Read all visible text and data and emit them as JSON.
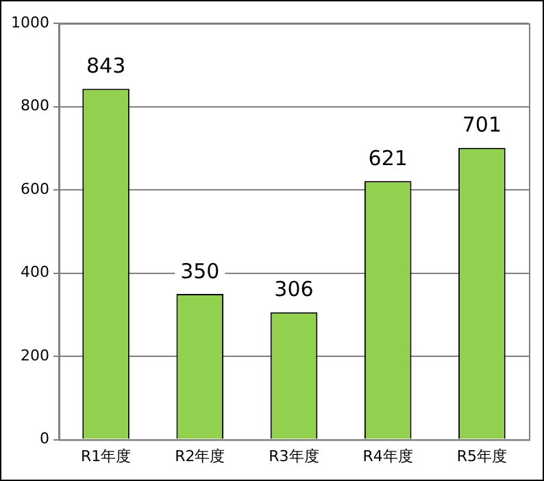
{
  "chart_data": {
    "type": "bar",
    "categories": [
      "R1年度",
      "R2年度",
      "R3年度",
      "R4年度",
      "R5年度"
    ],
    "values": [
      843,
      350,
      306,
      621,
      701
    ],
    "color": "#92d050",
    "ylim": [
      0,
      1000
    ],
    "yticks": [
      0,
      200,
      400,
      600,
      800,
      1000
    ],
    "grid": "y",
    "data_labels": true,
    "legend": false
  }
}
